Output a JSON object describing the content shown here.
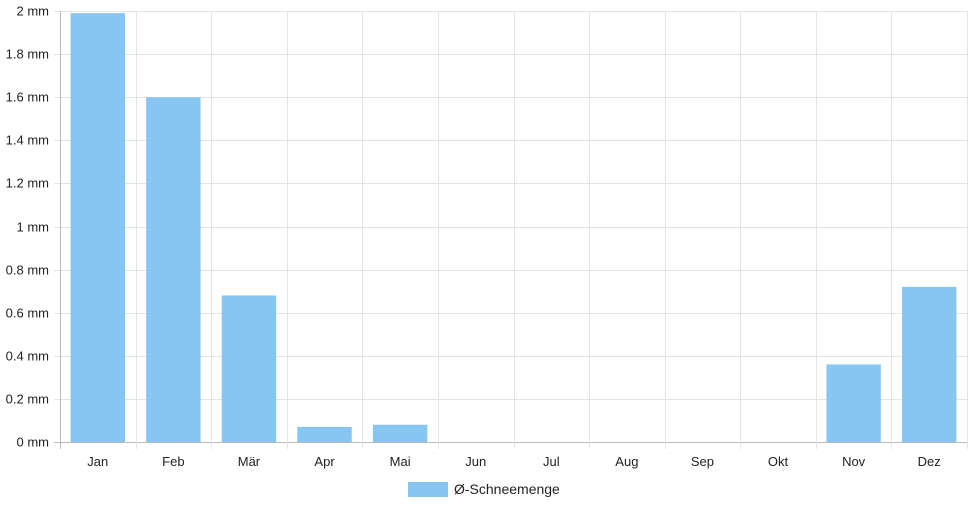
{
  "chart_data": {
    "type": "bar",
    "categories": [
      "Jan",
      "Feb",
      "Mär",
      "Apr",
      "Mai",
      "Jun",
      "Jul",
      "Aug",
      "Sep",
      "Okt",
      "Nov",
      "Dez"
    ],
    "series": [
      {
        "name": "Ø-Schneemenge",
        "values": [
          1.99,
          1.6,
          0.68,
          0.07,
          0.08,
          0,
          0,
          0,
          0,
          0,
          0.36,
          0.72
        ],
        "color": "#87c6f2"
      }
    ],
    "y_ticks": [
      "0 mm",
      "0.2 mm",
      "0.4 mm",
      "0.6 mm",
      "0.8 mm",
      "1 mm",
      "1.2 mm",
      "1.4 mm",
      "1.6 mm",
      "1.8 mm",
      "2 mm"
    ],
    "ylim": [
      0,
      2
    ],
    "unit": "mm",
    "grid": true,
    "legend_position": "bottom-center"
  }
}
